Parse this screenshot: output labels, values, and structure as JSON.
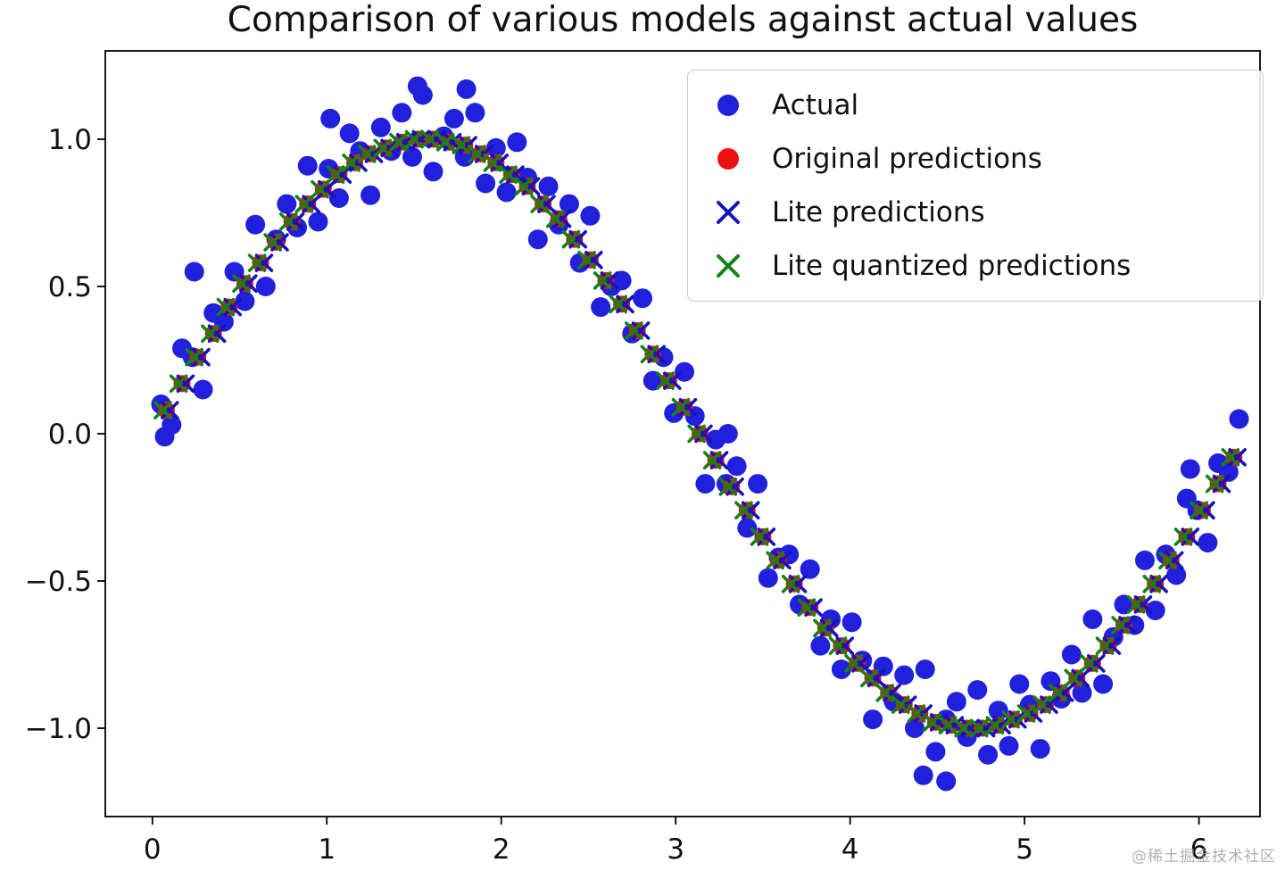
{
  "figure": {
    "background": "#ffffff"
  },
  "watermark": {
    "text": "@稀土掘金技术社区"
  },
  "chart_data": {
    "type": "scatter",
    "title": "Comparison of various models against actual values",
    "xlabel": "",
    "ylabel": "",
    "xlim": [
      -0.27,
      6.35
    ],
    "ylim": [
      -1.3,
      1.3
    ],
    "xticks": [
      0,
      1,
      2,
      3,
      4,
      5,
      6
    ],
    "xtick_labels": [
      "0",
      "1",
      "2",
      "3",
      "4",
      "5",
      "6"
    ],
    "yticks": [
      -1.0,
      -0.5,
      0.0,
      0.5,
      1.0
    ],
    "ytick_labels": [
      "−1.0",
      "−0.5",
      "0.0",
      "0.5",
      "1.0"
    ],
    "grid": false,
    "legend_position": "upper right",
    "axis_color": "#000000",
    "series": [
      {
        "id": "actual",
        "name": "Actual",
        "marker": "circle",
        "color": "#2020dd",
        "size": 11,
        "x": [
          0.05,
          0.11,
          0.17,
          0.23,
          0.29,
          0.35,
          0.41,
          0.47,
          0.53,
          0.59,
          0.65,
          0.71,
          0.77,
          0.83,
          0.89,
          0.95,
          1.01,
          1.07,
          1.13,
          1.19,
          1.25,
          1.31,
          1.37,
          1.43,
          1.49,
          1.55,
          1.61,
          1.67,
          1.73,
          1.79,
          1.85,
          1.91,
          1.97,
          2.03,
          2.09,
          2.15,
          2.21,
          2.27,
          2.33,
          2.39,
          2.45,
          2.51,
          2.57,
          2.63,
          2.69,
          2.75,
          2.81,
          2.87,
          2.93,
          2.99,
          3.05,
          3.11,
          3.17,
          3.23,
          3.29,
          3.35,
          3.41,
          3.47,
          3.53,
          3.59,
          3.65,
          3.71,
          3.77,
          3.83,
          3.89,
          3.95,
          4.01,
          4.07,
          4.13,
          4.19,
          4.25,
          4.31,
          4.37,
          4.43,
          4.49,
          4.55,
          4.61,
          4.67,
          4.73,
          4.79,
          4.85,
          4.91,
          4.97,
          5.03,
          5.09,
          5.15,
          5.21,
          5.27,
          5.33,
          5.39,
          5.45,
          5.51,
          5.57,
          5.63,
          5.69,
          5.75,
          5.81,
          5.87,
          5.93,
          5.99,
          6.05,
          6.11,
          6.17,
          6.23,
          1.52,
          1.8,
          4.42,
          4.55,
          1.02,
          0.24,
          3.3,
          5.95,
          0.07
        ],
        "y": [
          0.1,
          0.03,
          0.29,
          0.26,
          0.15,
          0.41,
          0.38,
          0.55,
          0.45,
          0.71,
          0.5,
          0.66,
          0.78,
          0.7,
          0.91,
          0.72,
          0.9,
          0.8,
          1.02,
          0.96,
          0.81,
          1.04,
          0.96,
          1.09,
          0.94,
          1.15,
          0.89,
          1.01,
          1.07,
          0.94,
          1.09,
          0.85,
          0.97,
          0.82,
          0.99,
          0.87,
          0.66,
          0.84,
          0.71,
          0.78,
          0.58,
          0.74,
          0.43,
          0.5,
          0.52,
          0.34,
          0.46,
          0.18,
          0.26,
          0.07,
          0.21,
          0.06,
          -0.17,
          -0.02,
          -0.17,
          -0.11,
          -0.32,
          -0.17,
          -0.49,
          -0.42,
          -0.41,
          -0.58,
          -0.46,
          -0.72,
          -0.63,
          -0.8,
          -0.64,
          -0.77,
          -0.97,
          -0.79,
          -0.91,
          -0.82,
          -1.0,
          -0.8,
          -1.08,
          -0.97,
          -0.91,
          -1.03,
          -0.87,
          -1.09,
          -0.94,
          -1.06,
          -0.85,
          -0.92,
          -1.07,
          -0.84,
          -0.9,
          -0.75,
          -0.88,
          -0.63,
          -0.85,
          -0.69,
          -0.58,
          -0.65,
          -0.43,
          -0.6,
          -0.41,
          -0.48,
          -0.22,
          -0.26,
          -0.37,
          -0.1,
          -0.13,
          0.05,
          1.18,
          1.17,
          -1.16,
          -1.18,
          1.07,
          0.55,
          0.0,
          -0.12,
          -0.01
        ]
      },
      {
        "id": "original-predictions",
        "name": "Original predictions",
        "marker": "circle",
        "color": "#ee1111",
        "size": 9.5,
        "x": [
          0.08,
          0.17,
          0.26,
          0.35,
          0.44,
          0.53,
          0.62,
          0.71,
          0.8,
          0.89,
          0.98,
          1.07,
          1.16,
          1.25,
          1.34,
          1.43,
          1.52,
          1.61,
          1.7,
          1.79,
          1.88,
          1.97,
          2.06,
          2.15,
          2.24,
          2.33,
          2.42,
          2.51,
          2.6,
          2.69,
          2.78,
          2.87,
          2.96,
          3.05,
          3.14,
          3.23,
          3.32,
          3.41,
          3.5,
          3.59,
          3.68,
          3.77,
          3.86,
          3.95,
          4.04,
          4.13,
          4.22,
          4.31,
          4.4,
          4.49,
          4.58,
          4.67,
          4.76,
          4.85,
          4.94,
          5.03,
          5.12,
          5.21,
          5.3,
          5.39,
          5.48,
          5.57,
          5.66,
          5.75,
          5.84,
          5.93,
          6.02,
          6.11,
          6.2
        ],
        "y": [
          0.08,
          0.17,
          0.26,
          0.34,
          0.43,
          0.51,
          0.58,
          0.65,
          0.72,
          0.78,
          0.83,
          0.88,
          0.92,
          0.95,
          0.97,
          0.99,
          1.0,
          1.0,
          0.99,
          0.98,
          0.95,
          0.92,
          0.88,
          0.84,
          0.78,
          0.73,
          0.66,
          0.59,
          0.52,
          0.44,
          0.35,
          0.27,
          0.18,
          0.09,
          0.0,
          -0.09,
          -0.18,
          -0.26,
          -0.35,
          -0.43,
          -0.51,
          -0.59,
          -0.66,
          -0.72,
          -0.78,
          -0.83,
          -0.88,
          -0.92,
          -0.95,
          -0.98,
          -0.99,
          -1.0,
          -1.0,
          -0.99,
          -0.97,
          -0.95,
          -0.92,
          -0.88,
          -0.83,
          -0.78,
          -0.72,
          -0.65,
          -0.58,
          -0.51,
          -0.43,
          -0.35,
          -0.26,
          -0.17,
          -0.08
        ]
      },
      {
        "id": "lite-predictions",
        "name": "Lite predictions",
        "marker": "x",
        "color": "#1414b8",
        "size": 8.5,
        "x": [
          0.1,
          0.19,
          0.28,
          0.37,
          0.46,
          0.55,
          0.64,
          0.73,
          0.82,
          0.91,
          1.0,
          1.09,
          1.18,
          1.27,
          1.36,
          1.45,
          1.54,
          1.63,
          1.72,
          1.81,
          1.9,
          1.99,
          2.08,
          2.17,
          2.26,
          2.35,
          2.44,
          2.53,
          2.62,
          2.71,
          2.8,
          2.89,
          2.98,
          3.07,
          3.16,
          3.25,
          3.34,
          3.43,
          3.52,
          3.61,
          3.7,
          3.79,
          3.88,
          3.97,
          4.06,
          4.15,
          4.24,
          4.33,
          4.42,
          4.51,
          4.6,
          4.69,
          4.78,
          4.87,
          4.96,
          5.05,
          5.14,
          5.23,
          5.32,
          5.41,
          5.5,
          5.59,
          5.68,
          5.77,
          5.86,
          5.95,
          6.04,
          6.13,
          6.22
        ],
        "y": [
          0.08,
          0.17,
          0.26,
          0.34,
          0.43,
          0.51,
          0.58,
          0.65,
          0.72,
          0.78,
          0.83,
          0.88,
          0.92,
          0.95,
          0.97,
          0.99,
          1.0,
          1.0,
          0.99,
          0.98,
          0.95,
          0.92,
          0.88,
          0.84,
          0.78,
          0.73,
          0.66,
          0.59,
          0.52,
          0.44,
          0.35,
          0.27,
          0.18,
          0.09,
          0.0,
          -0.09,
          -0.18,
          -0.26,
          -0.35,
          -0.43,
          -0.51,
          -0.59,
          -0.66,
          -0.72,
          -0.78,
          -0.83,
          -0.88,
          -0.92,
          -0.95,
          -0.98,
          -0.99,
          -1.0,
          -1.0,
          -0.99,
          -0.97,
          -0.95,
          -0.92,
          -0.88,
          -0.83,
          -0.78,
          -0.72,
          -0.65,
          -0.58,
          -0.51,
          -0.43,
          -0.35,
          -0.26,
          -0.17,
          -0.08
        ]
      },
      {
        "id": "lite-quantized-predictions",
        "name": "Lite quantized predictions",
        "marker": "x",
        "color": "#148214",
        "size": 8.5,
        "x": [
          0.06,
          0.15,
          0.24,
          0.33,
          0.42,
          0.51,
          0.6,
          0.69,
          0.78,
          0.87,
          0.96,
          1.05,
          1.14,
          1.23,
          1.32,
          1.41,
          1.5,
          1.59,
          1.68,
          1.77,
          1.86,
          1.95,
          2.04,
          2.13,
          2.22,
          2.31,
          2.4,
          2.49,
          2.58,
          2.67,
          2.76,
          2.85,
          2.94,
          3.03,
          3.12,
          3.21,
          3.3,
          3.39,
          3.48,
          3.57,
          3.66,
          3.75,
          3.84,
          3.93,
          4.02,
          4.11,
          4.2,
          4.29,
          4.38,
          4.47,
          4.56,
          4.65,
          4.74,
          4.83,
          4.92,
          5.01,
          5.1,
          5.19,
          5.28,
          5.37,
          5.46,
          5.55,
          5.64,
          5.73,
          5.82,
          5.91,
          6.0,
          6.09,
          6.18
        ],
        "y": [
          0.08,
          0.17,
          0.26,
          0.34,
          0.43,
          0.51,
          0.58,
          0.65,
          0.72,
          0.78,
          0.83,
          0.88,
          0.92,
          0.95,
          0.97,
          0.99,
          1.0,
          1.0,
          0.99,
          0.98,
          0.95,
          0.92,
          0.88,
          0.84,
          0.78,
          0.73,
          0.66,
          0.59,
          0.52,
          0.44,
          0.35,
          0.27,
          0.18,
          0.09,
          0.0,
          -0.09,
          -0.18,
          -0.26,
          -0.35,
          -0.43,
          -0.51,
          -0.59,
          -0.66,
          -0.72,
          -0.78,
          -0.83,
          -0.88,
          -0.92,
          -0.95,
          -0.98,
          -0.99,
          -1.0,
          -1.0,
          -0.99,
          -0.97,
          -0.95,
          -0.92,
          -0.88,
          -0.83,
          -0.78,
          -0.72,
          -0.65,
          -0.58,
          -0.51,
          -0.43,
          -0.35,
          -0.26,
          -0.17,
          -0.08
        ]
      }
    ]
  }
}
